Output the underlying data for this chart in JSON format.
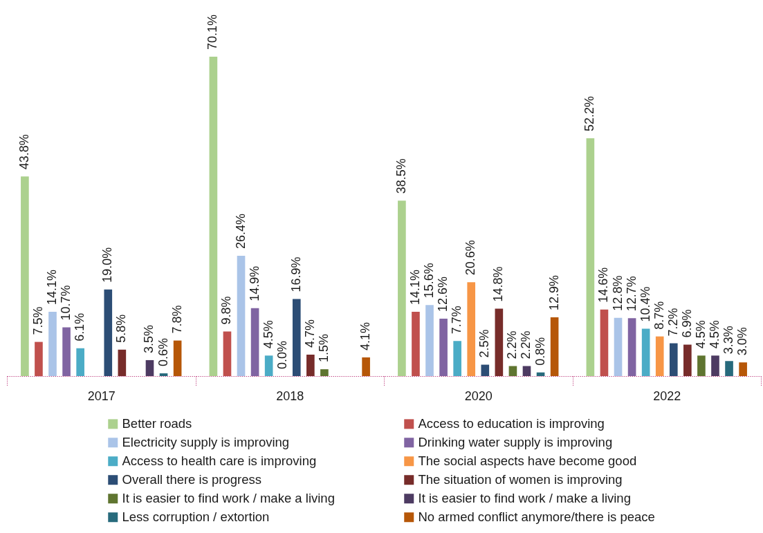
{
  "chart_data": {
    "type": "bar",
    "categories": [
      "2017",
      "2018",
      "2020",
      "2022"
    ],
    "legend": "bottom",
    "series": [
      {
        "name": "Better roads",
        "color": "#acd18e",
        "values": [
          43.8,
          70.1,
          38.5,
          52.2
        ],
        "value_labels": [
          "43.8%",
          "70.1%",
          "38.5%",
          "52.2%"
        ]
      },
      {
        "name": "Access to education is improving",
        "color": "#c0504d",
        "values": [
          7.5,
          9.8,
          14.1,
          14.6
        ],
        "value_labels": [
          "7.5%",
          "9.8%",
          "14.1%",
          "14.6%"
        ]
      },
      {
        "name": "Electricity supply is improving",
        "color": "#aac4e8",
        "values": [
          14.1,
          26.4,
          15.6,
          12.8
        ],
        "value_labels": [
          "14.1%",
          "26.4%",
          "15.6%",
          "12.8%"
        ]
      },
      {
        "name": "Drinking water supply is improving",
        "color": "#8064a2",
        "values": [
          10.7,
          14.9,
          12.6,
          12.7
        ],
        "value_labels": [
          "10.7%",
          "14.9%",
          "12.6%",
          "12.7%"
        ]
      },
      {
        "name": "Access to health care is improving",
        "color": "#4bacc6",
        "values": [
          6.1,
          4.5,
          7.7,
          10.4
        ],
        "value_labels": [
          "6.1%",
          "4.5%",
          "7.7%",
          "10.4%"
        ]
      },
      {
        "name": "The social aspects have become good",
        "color": "#f79646",
        "values": [
          null,
          0.0,
          20.6,
          8.7
        ],
        "value_labels": [
          null,
          "0.0%",
          "20.6%",
          "8.7%"
        ]
      },
      {
        "name": "Overall there is progress",
        "color": "#2c4d75",
        "values": [
          19.0,
          16.9,
          2.5,
          7.2
        ],
        "value_labels": [
          "19.0%",
          "16.9%",
          "2.5%",
          "7.2%"
        ]
      },
      {
        "name": "The situation of women is improving",
        "color": "#772c2a",
        "values": [
          5.8,
          4.7,
          14.8,
          6.9
        ],
        "value_labels": [
          "5.8%",
          "4.7%",
          "14.8%",
          "6.9%"
        ]
      },
      {
        "name": "It is easier to find work / make a living",
        "color": "#5f7530",
        "values": [
          null,
          1.5,
          2.2,
          4.5
        ],
        "value_labels": [
          null,
          "1.5%",
          "2.2%",
          "4.5%"
        ]
      },
      {
        "name": "It is easier to find work / make a living",
        "color": "#4d3b62",
        "values": [
          3.5,
          null,
          2.2,
          4.5
        ],
        "value_labels": [
          "3.5%",
          null,
          "2.2%",
          "4.5%"
        ]
      },
      {
        "name": "Less corruption / extortion",
        "color": "#276a7c",
        "values": [
          0.6,
          null,
          0.8,
          3.3
        ],
        "value_labels": [
          "0.6%",
          null,
          "0.8%",
          "3.3%"
        ]
      },
      {
        "name": "No armed conflict anymore/there is peace",
        "color": "#b65708",
        "values": [
          7.8,
          4.1,
          12.9,
          3.0
        ],
        "value_labels": [
          "7.8%",
          "4.1%",
          "12.9%",
          "3.0%"
        ]
      }
    ]
  }
}
